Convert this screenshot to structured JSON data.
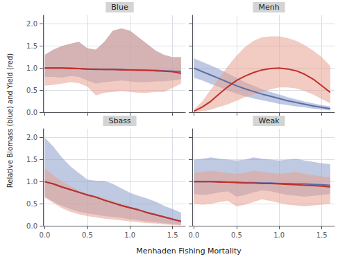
{
  "xlabel": "Menhaden Fishing Mortality",
  "ylabel": "Relative Biomass (blue) and Yield (red)",
  "chart_data": [
    {
      "type": "line",
      "title": "Blue",
      "x": [
        0.0,
        0.1,
        0.2,
        0.3,
        0.4,
        0.5,
        0.6,
        0.7,
        0.8,
        0.9,
        1.0,
        1.1,
        1.2,
        1.3,
        1.4,
        1.5,
        1.6
      ],
      "series": [
        {
          "type": "band",
          "color": "#8A9DC9",
          "lower": [
            0.8,
            0.8,
            0.78,
            0.82,
            0.8,
            0.72,
            0.65,
            0.68,
            0.7,
            0.72,
            0.7,
            0.68,
            0.68,
            0.7,
            0.7,
            0.72,
            0.75
          ],
          "upper": [
            1.3,
            1.42,
            1.5,
            1.55,
            1.6,
            1.45,
            1.42,
            1.6,
            1.85,
            1.9,
            1.85,
            1.7,
            1.55,
            1.4,
            1.3,
            1.25,
            1.25
          ]
        },
        {
          "type": "band",
          "color": "#E8A090",
          "lower": [
            0.6,
            0.62,
            0.65,
            0.68,
            0.66,
            0.58,
            0.38,
            0.44,
            0.46,
            0.48,
            0.46,
            0.44,
            0.44,
            0.46,
            0.46,
            0.55,
            0.65
          ],
          "upper": [
            1.3,
            1.42,
            1.5,
            1.55,
            1.6,
            1.45,
            1.42,
            1.6,
            1.85,
            1.9,
            1.85,
            1.7,
            1.55,
            1.4,
            1.3,
            1.25,
            1.25
          ]
        },
        {
          "type": "line",
          "color": "#5B6EA8",
          "values": [
            1.0,
            1.0,
            1.0,
            1.0,
            0.99,
            0.98,
            0.98,
            0.97,
            0.97,
            0.97,
            0.96,
            0.96,
            0.95,
            0.95,
            0.94,
            0.93,
            0.92
          ]
        },
        {
          "type": "line",
          "color": "#C0302A",
          "values": [
            1.0,
            1.0,
            1.0,
            0.99,
            0.99,
            0.98,
            0.97,
            0.97,
            0.97,
            0.96,
            0.96,
            0.95,
            0.95,
            0.94,
            0.93,
            0.92,
            0.88
          ]
        }
      ],
      "xlim": [
        -0.02,
        1.65
      ],
      "xticks": [
        {
          "value": 0.0,
          "label": "0.0"
        },
        0.5,
        {
          "value": 1.0,
          "label": "1.0"
        },
        1.5
      ],
      "ylim": [
        0.0,
        2.2
      ],
      "yticks": [
        {
          "value": 0.0,
          "label": "0.0"
        },
        0.5,
        {
          "value": 1.0,
          "label": "1.0"
        },
        1.5,
        {
          "value": 2.0,
          "label": "2.0"
        }
      ],
      "grid": true,
      "tick_labels": "y"
    },
    {
      "type": "line",
      "title": "Menh",
      "x": [
        0.0,
        0.1,
        0.2,
        0.3,
        0.4,
        0.5,
        0.6,
        0.7,
        0.8,
        0.9,
        1.0,
        1.1,
        1.2,
        1.3,
        1.4,
        1.5,
        1.6
      ],
      "series": [
        {
          "type": "band",
          "color": "#8A9DC9",
          "lower": [
            0.78,
            0.72,
            0.64,
            0.57,
            0.49,
            0.42,
            0.36,
            0.31,
            0.27,
            0.23,
            0.19,
            0.16,
            0.13,
            0.11,
            0.08,
            0.06,
            0.04
          ],
          "upper": [
            1.22,
            1.14,
            1.06,
            0.97,
            0.88,
            0.78,
            0.68,
            0.6,
            0.52,
            0.46,
            0.4,
            0.34,
            0.29,
            0.24,
            0.2,
            0.16,
            0.13
          ]
        },
        {
          "type": "band",
          "color": "#E8A090",
          "lower": [
            0.0,
            0.02,
            0.06,
            0.12,
            0.18,
            0.26,
            0.34,
            0.4,
            0.46,
            0.52,
            0.56,
            0.56,
            0.54,
            0.48,
            0.4,
            0.3,
            0.2
          ],
          "upper": [
            0.06,
            0.25,
            0.52,
            0.78,
            1.05,
            1.28,
            1.48,
            1.62,
            1.7,
            1.72,
            1.72,
            1.68,
            1.62,
            1.52,
            1.4,
            1.25,
            1.05
          ]
        },
        {
          "type": "line",
          "color": "#5B6EA8",
          "values": [
            1.0,
            0.92,
            0.84,
            0.76,
            0.68,
            0.6,
            0.53,
            0.47,
            0.41,
            0.36,
            0.31,
            0.26,
            0.22,
            0.18,
            0.14,
            0.11,
            0.08
          ]
        },
        {
          "type": "line",
          "color": "#C0302A",
          "values": [
            0.02,
            0.12,
            0.25,
            0.42,
            0.58,
            0.72,
            0.82,
            0.9,
            0.96,
            0.99,
            1.0,
            0.98,
            0.94,
            0.86,
            0.75,
            0.6,
            0.45
          ]
        }
      ],
      "xlim": [
        -0.02,
        1.65
      ],
      "xticks": [
        {
          "value": 0.0,
          "label": "0.0"
        },
        0.5,
        {
          "value": 1.0,
          "label": "1.0"
        },
        1.5
      ],
      "ylim": [
        0.0,
        2.2
      ],
      "yticks": [
        {
          "value": 0.0,
          "label": "0.0"
        },
        0.5,
        {
          "value": 1.0,
          "label": "1.0"
        },
        1.5,
        {
          "value": 2.0,
          "label": "2.0"
        }
      ],
      "grid": true,
      "tick_labels": false
    },
    {
      "type": "line",
      "title": "Sbass",
      "x": [
        0.0,
        0.1,
        0.2,
        0.3,
        0.4,
        0.5,
        0.6,
        0.7,
        0.8,
        0.9,
        1.0,
        1.1,
        1.2,
        1.3,
        1.4,
        1.5,
        1.6
      ],
      "series": [
        {
          "type": "band",
          "color": "#8A9DC9",
          "lower": [
            0.65,
            0.55,
            0.45,
            0.38,
            0.32,
            0.28,
            0.25,
            0.22,
            0.2,
            0.18,
            0.15,
            0.12,
            0.1,
            0.08,
            0.06,
            0.04,
            0.02
          ],
          "upper": [
            2.0,
            1.8,
            1.55,
            1.35,
            1.2,
            1.05,
            1.02,
            1.02,
            0.95,
            0.85,
            0.75,
            0.68,
            0.62,
            0.55,
            0.45,
            0.38,
            0.3
          ]
        },
        {
          "type": "band",
          "color": "#E8A090",
          "lower": [
            0.65,
            0.52,
            0.4,
            0.32,
            0.26,
            0.22,
            0.19,
            0.16,
            0.14,
            0.12,
            0.1,
            0.08,
            0.06,
            0.05,
            0.03,
            0.02,
            0.01
          ],
          "upper": [
            1.3,
            1.15,
            1.0,
            0.9,
            0.8,
            0.72,
            0.68,
            0.62,
            0.56,
            0.5,
            0.44,
            0.38,
            0.32,
            0.26,
            0.2,
            0.15,
            0.1
          ]
        },
        {
          "type": "line",
          "color": "#5B6EA8",
          "values": [
            1.0,
            0.95,
            0.88,
            0.82,
            0.76,
            0.7,
            0.65,
            0.58,
            0.52,
            0.46,
            0.41,
            0.36,
            0.3,
            0.25,
            0.2,
            0.15,
            0.1
          ]
        },
        {
          "type": "line",
          "color": "#C0302A",
          "values": [
            1.0,
            0.95,
            0.88,
            0.82,
            0.76,
            0.7,
            0.65,
            0.58,
            0.52,
            0.46,
            0.41,
            0.36,
            0.3,
            0.25,
            0.2,
            0.15,
            0.1
          ]
        }
      ],
      "xlim": [
        -0.02,
        1.65
      ],
      "xticks": [
        {
          "value": 0.0,
          "label": "0.0"
        },
        0.5,
        {
          "value": 1.0,
          "label": "1.0"
        },
        1.5
      ],
      "ylim": [
        0.0,
        2.2
      ],
      "yticks": [
        {
          "value": 0.0,
          "label": "0.0"
        },
        0.5,
        {
          "value": 1.0,
          "label": "1.0"
        },
        1.5,
        {
          "value": 2.0,
          "label": "2.0"
        }
      ],
      "grid": true
    },
    {
      "type": "line",
      "title": "Weak",
      "x": [
        0.0,
        0.1,
        0.2,
        0.3,
        0.4,
        0.5,
        0.6,
        0.7,
        0.8,
        0.9,
        1.0,
        1.1,
        1.2,
        1.3,
        1.4,
        1.5,
        1.6
      ],
      "series": [
        {
          "type": "band",
          "color": "#8A9DC9",
          "lower": [
            0.72,
            0.7,
            0.72,
            0.76,
            0.78,
            0.66,
            0.7,
            0.76,
            0.8,
            0.78,
            0.74,
            0.7,
            0.68,
            0.66,
            0.68,
            0.7,
            0.72
          ],
          "upper": [
            1.5,
            1.52,
            1.55,
            1.52,
            1.5,
            1.48,
            1.5,
            1.55,
            1.52,
            1.5,
            1.48,
            1.5,
            1.52,
            1.48,
            1.45,
            1.42,
            1.4
          ]
        },
        {
          "type": "band",
          "color": "#E8A090",
          "lower": [
            0.5,
            0.48,
            0.5,
            0.54,
            0.56,
            0.44,
            0.48,
            0.54,
            0.6,
            0.56,
            0.52,
            0.48,
            0.46,
            0.44,
            0.46,
            0.48,
            0.5
          ],
          "upper": [
            1.2,
            1.22,
            1.25,
            1.22,
            1.2,
            1.18,
            1.2,
            1.25,
            1.22,
            1.2,
            1.18,
            1.2,
            1.22,
            1.18,
            1.15,
            1.12,
            1.1
          ]
        },
        {
          "type": "line",
          "color": "#5B6EA8",
          "values": [
            1.0,
            1.0,
            1.0,
            1.0,
            0.99,
            0.99,
            0.98,
            0.98,
            0.97,
            0.97,
            0.96,
            0.96,
            0.95,
            0.95,
            0.94,
            0.93,
            0.92
          ]
        },
        {
          "type": "line",
          "color": "#C0302A",
          "values": [
            1.0,
            1.0,
            1.0,
            0.99,
            0.99,
            0.98,
            0.97,
            0.97,
            0.96,
            0.96,
            0.95,
            0.94,
            0.93,
            0.92,
            0.91,
            0.9,
            0.88
          ]
        }
      ],
      "xlim": [
        -0.02,
        1.65
      ],
      "xticks": [
        {
          "value": 0.0,
          "label": "0.0"
        },
        0.5,
        {
          "value": 1.0,
          "label": "1.0"
        },
        1.5
      ],
      "ylim": [
        0.0,
        2.2
      ],
      "yticks": [
        {
          "value": 0.0,
          "label": "0.0"
        },
        0.5,
        {
          "value": 1.0,
          "label": "1.0"
        },
        1.5,
        {
          "value": 2.0,
          "label": "2.0"
        }
      ],
      "grid": true,
      "tick_labels": "x"
    }
  ]
}
